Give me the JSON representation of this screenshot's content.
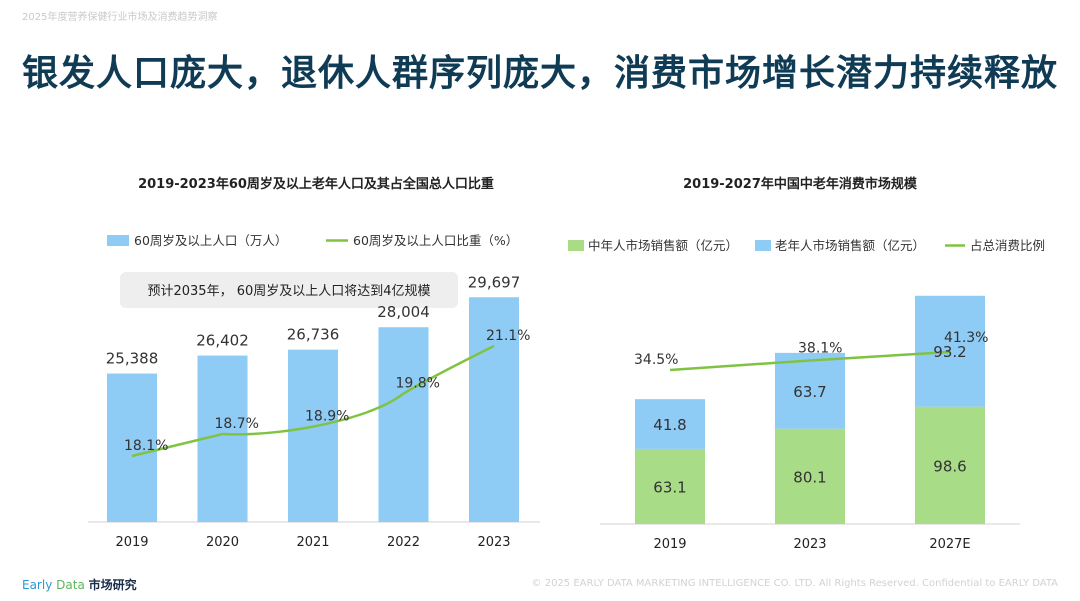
{
  "page": {
    "top_label": "2025年度营养保健行业市场及消费趋势洞察",
    "headline": "银发人口庞大，退休人群序列庞大，消费市场增长潜力持续释放",
    "footer_brand": {
      "early": "Early",
      "data": "Data",
      "cn": "市场研究"
    },
    "copyright": "© 2025 EARLY DATA MARKETING INTELLIGENCE CO. LTD. All Rights Reserved. Confidential to EARLY DATA"
  },
  "colors": {
    "bar_blue": "#8ecbf5",
    "bar_green": "#a9dc86",
    "line_green": "#80c342",
    "headline": "#0f3b55",
    "axis": "#d0d0d0"
  },
  "chart_data": [
    {
      "type": "bar",
      "title": "2019-2023年60周岁及以上老年人口及其占全国总人口比重",
      "annotation": "预计2035年， 60周岁及以上人口将达到4亿规模",
      "categories": [
        "2019",
        "2020",
        "2021",
        "2022",
        "2023"
      ],
      "series": [
        {
          "name": "60周岁及以上人口（万人）",
          "type": "bar",
          "values": [
            25388,
            26402,
            26736,
            28004,
            29697
          ],
          "labels": [
            "25,388",
            "26,402",
            "26,736",
            "28,004",
            "29,697"
          ]
        },
        {
          "name": "60周岁及以上人口比重（%）",
          "type": "line",
          "values": [
            18.1,
            18.7,
            18.9,
            19.8,
            21.1
          ],
          "labels": [
            "18.1%",
            "18.7%",
            "18.9%",
            "19.8%",
            "21.1%"
          ]
        }
      ],
      "legend_position": "top"
    },
    {
      "type": "bar",
      "stacked": true,
      "title": "2019-2027年中国中老年消费市场规模",
      "categories": [
        "2019",
        "2023",
        "2027E"
      ],
      "series": [
        {
          "name": "中年人市场销售额（亿元）",
          "type": "bar",
          "values": [
            63.1,
            80.1,
            98.6
          ],
          "labels": [
            "63.1",
            "80.1",
            "98.6"
          ]
        },
        {
          "name": "老年人市场销售额（亿元）",
          "type": "bar",
          "values": [
            41.8,
            63.7,
            93.2
          ],
          "labels": [
            "41.8",
            "63.7",
            "93.2"
          ]
        },
        {
          "name": "占总消费比例",
          "type": "line",
          "values": [
            34.5,
            38.1,
            41.3
          ],
          "labels": [
            "34.5%",
            "38.1%",
            "41.3%"
          ]
        }
      ],
      "legend_position": "top"
    }
  ]
}
